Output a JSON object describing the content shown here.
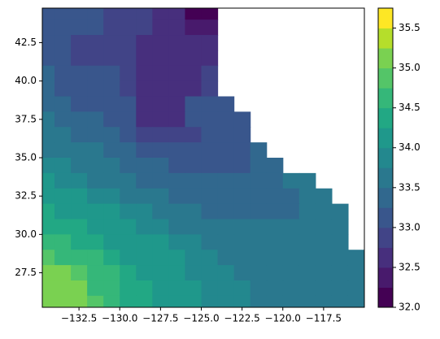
{
  "chart_data": {
    "type": "contourf",
    "x": [
      -134.5,
      -133.5,
      -132.5,
      -131.5,
      -130.5,
      -129.5,
      -128.5,
      -127.5,
      -126.5,
      -125.5,
      -124.5,
      -123.5,
      -122.5,
      -121.5,
      -120.5,
      -119.5,
      -118.5,
      -117.5,
      -116.5,
      -115.5
    ],
    "y": [
      44.5,
      43.5,
      42.5,
      41.5,
      40.5,
      39.5,
      38.5,
      37.5,
      36.5,
      35.5,
      34.5,
      33.5,
      32.5,
      31.5,
      30.5,
      29.5,
      28.5,
      27.5,
      26.5,
      25.5
    ],
    "z": [
      [
        33.0,
        33.0,
        33.0,
        33.0,
        32.9,
        32.9,
        32.9,
        32.6,
        32.6,
        32.2,
        32.2,
        null,
        null,
        null,
        null,
        null,
        null,
        null,
        null,
        null
      ],
      [
        33.0,
        33.0,
        33.0,
        33.0,
        32.9,
        32.9,
        32.9,
        32.6,
        32.6,
        32.4,
        32.4,
        null,
        null,
        null,
        null,
        null,
        null,
        null,
        null,
        null
      ],
      [
        33.1,
        33.1,
        32.9,
        32.9,
        32.9,
        32.9,
        32.6,
        32.6,
        32.6,
        32.6,
        32.6,
        null,
        null,
        null,
        null,
        null,
        null,
        null,
        null,
        null
      ],
      [
        33.1,
        33.1,
        32.9,
        32.9,
        32.9,
        32.9,
        32.6,
        32.6,
        32.6,
        32.6,
        32.6,
        null,
        null,
        null,
        null,
        null,
        null,
        null,
        null,
        null
      ],
      [
        33.3,
        33.1,
        33.1,
        33.1,
        33.1,
        32.9,
        32.6,
        32.6,
        32.6,
        32.6,
        32.9,
        null,
        null,
        null,
        null,
        null,
        null,
        null,
        null,
        null
      ],
      [
        33.3,
        33.1,
        33.1,
        33.1,
        33.1,
        32.9,
        32.6,
        32.6,
        32.6,
        32.6,
        32.9,
        null,
        null,
        null,
        null,
        null,
        null,
        null,
        null,
        null
      ],
      [
        33.4,
        33.4,
        33.2,
        33.2,
        33.2,
        33.0,
        32.7,
        32.7,
        32.7,
        33.0,
        33.0,
        33.0,
        null,
        null,
        null,
        null,
        null,
        null,
        null,
        null
      ],
      [
        33.6,
        33.4,
        33.4,
        33.4,
        33.1,
        33.1,
        32.7,
        32.7,
        32.7,
        33.1,
        33.1,
        33.1,
        33.1,
        null,
        null,
        null,
        null,
        null,
        null,
        null
      ],
      [
        33.6,
        33.6,
        33.4,
        33.4,
        33.4,
        33.1,
        32.9,
        32.9,
        32.9,
        32.9,
        33.1,
        33.1,
        33.1,
        null,
        null,
        null,
        null,
        null,
        null,
        null
      ],
      [
        33.7,
        33.6,
        33.6,
        33.6,
        33.4,
        33.4,
        33.1,
        33.1,
        33.1,
        33.1,
        33.2,
        33.2,
        33.2,
        33.4,
        null,
        null,
        null,
        null,
        null,
        null
      ],
      [
        33.8,
        33.8,
        33.6,
        33.6,
        33.6,
        33.4,
        33.4,
        33.4,
        33.2,
        33.2,
        33.2,
        33.2,
        33.2,
        33.4,
        33.4,
        null,
        null,
        null,
        null,
        null
      ],
      [
        34.0,
        33.9,
        33.8,
        33.7,
        33.6,
        33.6,
        33.4,
        33.4,
        33.4,
        33.3,
        33.3,
        33.3,
        33.3,
        33.4,
        33.4,
        33.5,
        33.5,
        null,
        null,
        null
      ],
      [
        34.1,
        34.1,
        34.0,
        33.9,
        33.8,
        33.7,
        33.6,
        33.6,
        33.4,
        33.4,
        33.4,
        33.3,
        33.3,
        33.3,
        33.4,
        33.4,
        33.5,
        33.6,
        null,
        null
      ],
      [
        34.3,
        34.2,
        34.1,
        34.0,
        34.0,
        33.9,
        33.8,
        33.7,
        33.6,
        33.6,
        33.4,
        33.4,
        33.4,
        33.4,
        33.4,
        33.4,
        33.5,
        33.6,
        33.6,
        null
      ],
      [
        34.4,
        34.4,
        34.3,
        34.1,
        34.0,
        34.0,
        33.9,
        33.8,
        33.7,
        33.6,
        33.6,
        33.6,
        33.6,
        33.6,
        33.6,
        33.6,
        33.6,
        33.6,
        33.6,
        null
      ],
      [
        34.6,
        34.5,
        34.4,
        34.3,
        34.2,
        34.1,
        34.0,
        34.0,
        33.9,
        33.8,
        33.7,
        33.6,
        33.6,
        33.6,
        33.6,
        33.6,
        33.6,
        33.6,
        33.6,
        null
      ],
      [
        34.8,
        34.7,
        34.6,
        34.5,
        34.3,
        34.2,
        34.1,
        34.0,
        34.0,
        33.9,
        33.8,
        33.7,
        33.7,
        33.6,
        33.6,
        33.6,
        33.6,
        33.6,
        33.6,
        33.6
      ],
      [
        35.1,
        35.0,
        34.8,
        34.6,
        34.5,
        34.3,
        34.2,
        34.1,
        34.0,
        33.9,
        33.9,
        33.8,
        33.7,
        33.7,
        33.6,
        33.6,
        33.6,
        33.6,
        33.6,
        33.6
      ],
      [
        35.1,
        35.1,
        35.0,
        34.7,
        34.6,
        34.4,
        34.3,
        34.1,
        34.0,
        34.0,
        33.9,
        33.8,
        33.8,
        33.7,
        33.7,
        33.6,
        33.6,
        33.6,
        33.6,
        33.6
      ],
      [
        35.1,
        35.1,
        35.1,
        34.8,
        34.6,
        34.4,
        34.3,
        34.2,
        34.0,
        34.0,
        33.9,
        33.8,
        33.8,
        33.7,
        33.7,
        33.6,
        33.6,
        33.6,
        33.6,
        33.6
      ]
    ],
    "xlim": [
      -134.75,
      -115
    ],
    "ylim": [
      25.25,
      44.75
    ],
    "xticks": [
      {
        "value": -132.5,
        "label": "−132.5"
      },
      {
        "value": -130,
        "label": "−130.0"
      },
      {
        "value": -127.5,
        "label": "−127.5"
      },
      {
        "value": -125,
        "label": "−125.0"
      },
      {
        "value": -122.5,
        "label": "−122.5"
      },
      {
        "value": -120,
        "label": "−120.0"
      },
      {
        "value": -117.5,
        "label": "−117.5"
      }
    ],
    "yticks": [
      27.5,
      {
        "value": 30,
        "label": "30.0"
      },
      32.5,
      {
        "value": 35,
        "label": "35.0"
      },
      37.5,
      {
        "value": 40,
        "label": "40.0"
      },
      42.5
    ],
    "levels": [
      32,
      32.25,
      32.5,
      32.75,
      33,
      33.25,
      33.5,
      33.75,
      34,
      34.25,
      34.5,
      34.75,
      35,
      35.25,
      35.5,
      35.75
    ],
    "colors": [
      "#440154",
      "#481a6c",
      "#472f7d",
      "#414487",
      "#39568c",
      "#31688e",
      "#2a788e",
      "#23888e",
      "#1f988b",
      "#22a884",
      "#35b779",
      "#54c568",
      "#7ad151",
      "#b5de2b",
      "#fde725"
    ],
    "colorbar_ticks": [
      {
        "value": 32,
        "label": "32.0"
      },
      32.5,
      {
        "value": 33,
        "label": "33.0"
      },
      33.5,
      {
        "value": 34,
        "label": "34.0"
      },
      34.5,
      {
        "value": 35,
        "label": "35.0"
      },
      35.5
    ]
  }
}
